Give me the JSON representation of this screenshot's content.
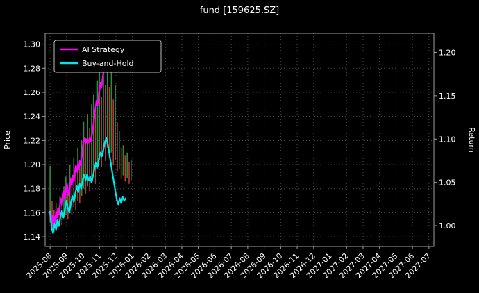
{
  "title": "fund [159625.SZ]",
  "colors": {
    "background": "#000000",
    "text": "#ffffff",
    "grid": "#4d4d4d",
    "spine": "#a0a0a0",
    "ai_strategy": "#ff00ff",
    "buy_and_hold": "#00e5ee",
    "candle_up": "#2e8b3d",
    "candle_down": "#c0392b"
  },
  "axes": {
    "left_label": "Price",
    "right_label": "Return",
    "left_ticks": [
      "1.30",
      "1.28",
      "1.26",
      "1.24",
      "1.22",
      "1.20",
      "1.18",
      "1.16",
      "1.14"
    ],
    "right_ticks": [
      "1.20",
      "1.15",
      "1.10",
      "1.05",
      "1.00"
    ],
    "x_ticks": [
      "2025-08",
      "2025-09",
      "2025-10",
      "2025-11",
      "2025-12",
      "2026-01",
      "2026-02",
      "2026-03",
      "2026-04",
      "2026-05",
      "2026-06",
      "2026-07",
      "2026-08",
      "2026-09",
      "2026-10",
      "2026-11",
      "2026-12",
      "2027-01",
      "2027-02",
      "2027-03",
      "2027-04",
      "2027-05",
      "2027-06",
      "2027-07"
    ]
  },
  "legend": {
    "items": [
      {
        "label": "AI Strategy",
        "color": "#ff00ff"
      },
      {
        "label": "Buy-and-Hold",
        "color": "#00e5ee"
      }
    ]
  },
  "chart_data": {
    "type": "line",
    "title": "fund [159625.SZ]",
    "ylabel_left": "Price",
    "ylabel_right": "Return",
    "x_unit": "months_since_2025-08",
    "x_domain": [
      -0.3,
      23.3
    ],
    "price_axis_range": [
      1.132,
      1.309
    ],
    "return_axis_range": [
      0.976,
      1.222
    ],
    "grid": true,
    "series": [
      {
        "name": "AI Strategy",
        "color": "#ff00ff",
        "axis": "price",
        "points": [
          [
            0.0,
            1.16
          ],
          [
            0.06,
            1.154
          ],
          [
            0.12,
            1.158
          ],
          [
            0.18,
            1.15
          ],
          [
            0.24,
            1.157
          ],
          [
            0.3,
            1.152
          ],
          [
            0.36,
            1.161
          ],
          [
            0.42,
            1.156
          ],
          [
            0.48,
            1.164
          ],
          [
            0.54,
            1.159
          ],
          [
            0.6,
            1.167
          ],
          [
            0.66,
            1.172
          ],
          [
            0.72,
            1.166
          ],
          [
            0.78,
            1.173
          ],
          [
            0.84,
            1.178
          ],
          [
            0.9,
            1.172
          ],
          [
            0.96,
            1.178
          ],
          [
            1.02,
            1.184
          ],
          [
            1.08,
            1.179
          ],
          [
            1.14,
            1.174
          ],
          [
            1.2,
            1.181
          ],
          [
            1.26,
            1.188
          ],
          [
            1.32,
            1.183
          ],
          [
            1.38,
            1.191
          ],
          [
            1.44,
            1.186
          ],
          [
            1.5,
            1.193
          ],
          [
            1.56,
            1.199
          ],
          [
            1.62,
            1.194
          ],
          [
            1.68,
            1.2
          ],
          [
            1.74,
            1.196
          ],
          [
            1.8,
            1.203
          ],
          [
            1.86,
            1.199
          ],
          [
            1.92,
            1.206
          ],
          [
            1.98,
            1.213
          ],
          [
            2.04,
            1.219
          ],
          [
            2.1,
            1.222
          ],
          [
            2.16,
            1.218
          ],
          [
            2.22,
            1.221
          ],
          [
            2.28,
            1.217
          ],
          [
            2.34,
            1.22
          ],
          [
            2.4,
            1.222
          ],
          [
            2.46,
            1.219
          ],
          [
            2.52,
            1.223
          ],
          [
            2.58,
            1.228
          ],
          [
            2.64,
            1.234
          ],
          [
            2.7,
            1.241
          ],
          [
            2.76,
            1.247
          ],
          [
            2.82,
            1.253
          ],
          [
            2.88,
            1.249
          ],
          [
            2.94,
            1.256
          ],
          [
            3.0,
            1.262
          ],
          [
            3.06,
            1.268
          ],
          [
            3.12,
            1.264
          ],
          [
            3.18,
            1.271
          ],
          [
            3.24,
            1.277
          ],
          [
            3.3,
            1.283
          ],
          [
            3.36,
            1.279
          ],
          [
            3.42,
            1.285
          ]
        ]
      },
      {
        "name": "Buy-and-Hold",
        "color": "#00e5ee",
        "axis": "price",
        "points": [
          [
            0.0,
            1.161
          ],
          [
            0.09,
            1.148
          ],
          [
            0.18,
            1.143
          ],
          [
            0.27,
            1.151
          ],
          [
            0.36,
            1.146
          ],
          [
            0.45,
            1.154
          ],
          [
            0.54,
            1.149
          ],
          [
            0.63,
            1.157
          ],
          [
            0.72,
            1.162
          ],
          [
            0.81,
            1.156
          ],
          [
            0.9,
            1.163
          ],
          [
            0.99,
            1.17
          ],
          [
            1.08,
            1.164
          ],
          [
            1.17,
            1.16
          ],
          [
            1.26,
            1.168
          ],
          [
            1.35,
            1.174
          ],
          [
            1.44,
            1.169
          ],
          [
            1.53,
            1.176
          ],
          [
            1.62,
            1.182
          ],
          [
            1.71,
            1.177
          ],
          [
            1.8,
            1.184
          ],
          [
            1.89,
            1.18
          ],
          [
            1.98,
            1.187
          ],
          [
            2.07,
            1.192
          ],
          [
            2.16,
            1.187
          ],
          [
            2.25,
            1.192
          ],
          [
            2.34,
            1.187
          ],
          [
            2.43,
            1.19
          ],
          [
            2.52,
            1.185
          ],
          [
            2.61,
            1.191
          ],
          [
            2.7,
            1.197
          ],
          [
            2.79,
            1.202
          ],
          [
            2.88,
            1.198
          ],
          [
            2.97,
            1.205
          ],
          [
            3.06,
            1.21
          ],
          [
            3.15,
            1.207
          ],
          [
            3.24,
            1.213
          ],
          [
            3.33,
            1.219
          ],
          [
            3.42,
            1.222
          ],
          [
            3.51,
            1.216
          ],
          [
            3.6,
            1.209
          ],
          [
            3.69,
            1.201
          ],
          [
            3.78,
            1.193
          ],
          [
            3.87,
            1.186
          ],
          [
            3.96,
            1.178
          ],
          [
            4.05,
            1.171
          ],
          [
            4.14,
            1.167
          ],
          [
            4.23,
            1.172
          ],
          [
            4.32,
            1.168
          ],
          [
            4.41,
            1.173
          ],
          [
            4.5,
            1.17
          ],
          [
            4.59,
            1.172
          ]
        ]
      }
    ],
    "candles": {
      "up_color": "#2e8b3d",
      "down_color": "#c0392b",
      "bars": [
        [
          0.0,
          1.152,
          1.199,
          "g"
        ],
        [
          0.12,
          1.146,
          1.17,
          "r"
        ],
        [
          0.24,
          1.144,
          1.162,
          "r"
        ],
        [
          0.36,
          1.148,
          1.168,
          "g"
        ],
        [
          0.48,
          1.146,
          1.163,
          "r"
        ],
        [
          0.6,
          1.152,
          1.174,
          "g"
        ],
        [
          0.72,
          1.15,
          1.17,
          "r"
        ],
        [
          0.84,
          1.156,
          1.182,
          "g"
        ],
        [
          0.96,
          1.158,
          1.19,
          "g"
        ],
        [
          1.08,
          1.155,
          1.178,
          "r"
        ],
        [
          1.2,
          1.162,
          1.2,
          "g"
        ],
        [
          1.32,
          1.158,
          1.185,
          "r"
        ],
        [
          1.44,
          1.165,
          1.206,
          "g"
        ],
        [
          1.56,
          1.162,
          1.192,
          "r"
        ],
        [
          1.68,
          1.17,
          1.214,
          "g"
        ],
        [
          1.8,
          1.168,
          1.198,
          "r"
        ],
        [
          1.92,
          1.174,
          1.22,
          "g"
        ],
        [
          2.04,
          1.18,
          1.236,
          "g"
        ],
        [
          2.16,
          1.176,
          1.222,
          "r"
        ],
        [
          2.28,
          1.182,
          1.242,
          "g"
        ],
        [
          2.4,
          1.178,
          1.23,
          "r"
        ],
        [
          2.52,
          1.186,
          1.25,
          "g"
        ],
        [
          2.64,
          1.19,
          1.258,
          "g"
        ],
        [
          2.76,
          1.184,
          1.242,
          "r"
        ],
        [
          2.88,
          1.196,
          1.27,
          "g"
        ],
        [
          3.0,
          1.204,
          1.28,
          "g"
        ],
        [
          3.12,
          1.198,
          1.256,
          "r"
        ],
        [
          3.24,
          1.21,
          1.288,
          "g"
        ],
        [
          3.36,
          1.203,
          1.266,
          "r"
        ],
        [
          3.48,
          1.214,
          1.292,
          "g"
        ],
        [
          3.6,
          1.206,
          1.264,
          "r"
        ],
        [
          3.72,
          1.21,
          1.278,
          "g"
        ],
        [
          3.84,
          1.2,
          1.254,
          "r"
        ],
        [
          3.96,
          1.204,
          1.266,
          "g"
        ],
        [
          4.08,
          1.194,
          1.235,
          "r"
        ],
        [
          4.2,
          1.196,
          1.228,
          "g"
        ],
        [
          4.32,
          1.188,
          1.214,
          "r"
        ],
        [
          4.44,
          1.191,
          1.216,
          "g"
        ],
        [
          4.56,
          1.186,
          1.208,
          "r"
        ],
        [
          4.68,
          1.189,
          1.21,
          "g"
        ],
        [
          4.8,
          1.184,
          1.202,
          "r"
        ],
        [
          4.92,
          1.187,
          1.204,
          "g"
        ]
      ]
    }
  }
}
